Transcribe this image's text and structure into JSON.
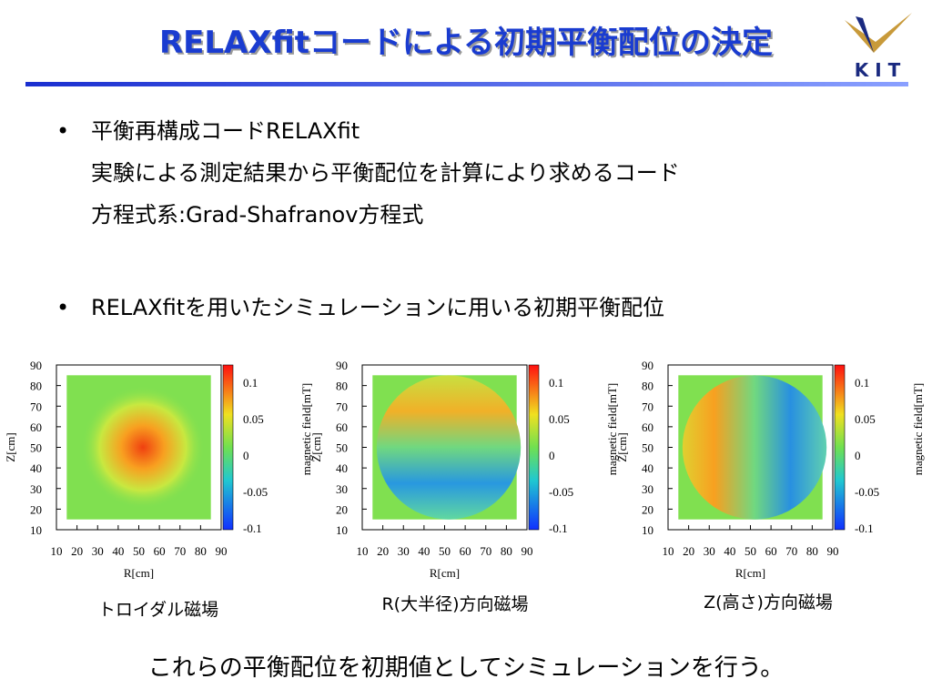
{
  "header": {
    "title": "RELAXfitコードによる初期平衡配位の決定",
    "logo": "K I T"
  },
  "bullets": [
    {
      "lines": [
        "平衡再構成コードRELAXfit",
        "実験による測定結果から平衡配位を計算により求めるコード",
        "方程式系:Grad-Shafranov方程式"
      ]
    },
    {
      "lines": [
        "RELAXfitを用いたシミュレーションに用いる初期平衡配位"
      ]
    }
  ],
  "plots": [
    {
      "caption": "トロイダル磁場",
      "x_label": "R[cm]",
      "y_label": "Z[cm]",
      "colorbar_label": "magnetic field[mT]",
      "xticks": [
        10,
        20,
        30,
        40,
        50,
        60,
        70,
        80,
        90
      ],
      "yticks": [
        90,
        80,
        70,
        60,
        50,
        40,
        30,
        20,
        10
      ],
      "colorbar_ticks": [
        0.1,
        0.05,
        0,
        -0.05,
        -0.1
      ]
    },
    {
      "caption": "R(大半径)方向磁場",
      "x_label": "R[cm]",
      "y_label": "Z[cm]",
      "colorbar_label": "magnetic field[mT]",
      "xticks": [
        10,
        20,
        30,
        40,
        50,
        60,
        70,
        80,
        90
      ],
      "yticks": [
        90,
        80,
        70,
        60,
        50,
        40,
        30,
        20,
        10
      ],
      "colorbar_ticks": [
        0.1,
        0.05,
        0,
        -0.05,
        -0.1
      ]
    },
    {
      "caption": "Z(高さ)方向磁場",
      "x_label": "R[cm]",
      "y_label": "Z[cm]",
      "colorbar_label": "magnetic field[mT]",
      "xticks": [
        10,
        20,
        30,
        40,
        50,
        60,
        70,
        80,
        90
      ],
      "yticks": [
        90,
        80,
        70,
        60,
        50,
        40,
        30,
        20,
        10
      ],
      "colorbar_ticks": [
        0.1,
        0.05,
        0,
        -0.05,
        -0.1
      ]
    }
  ],
  "footer": "これらの平衡配位を初期値としてシミュレーションを行う。"
}
